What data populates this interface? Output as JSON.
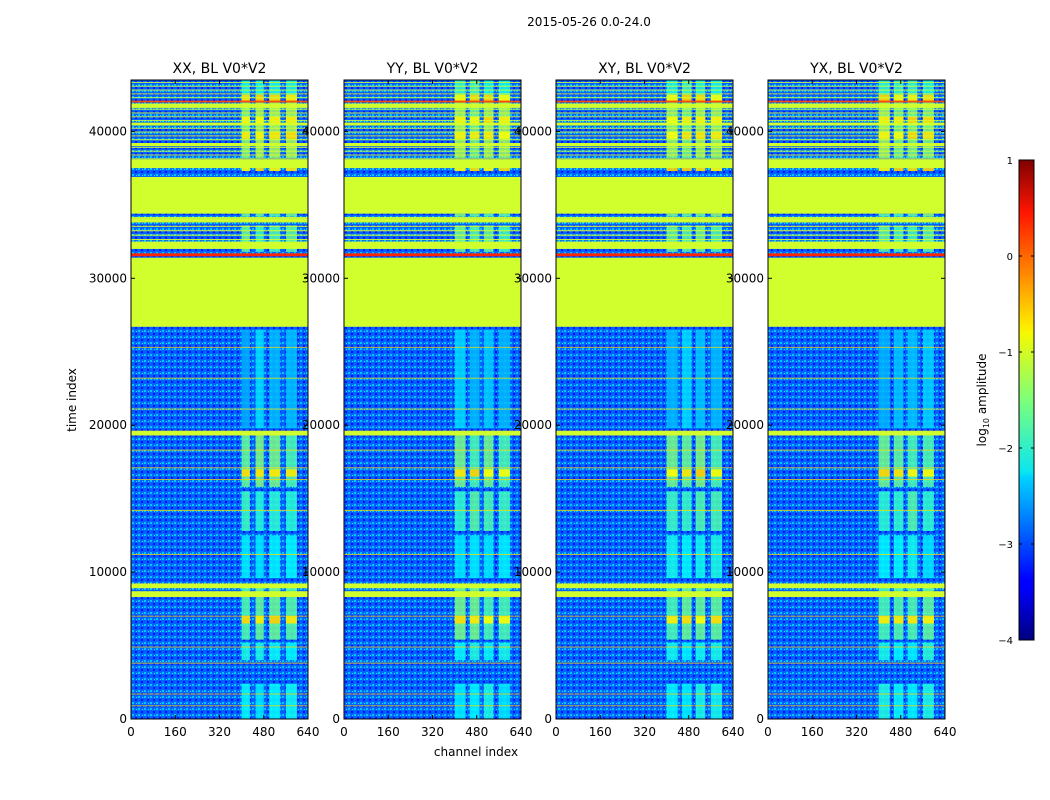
{
  "suptitle": "2015-05-26 0.0-24.0",
  "chart_data": {
    "type": "heatmap",
    "title": "2015-05-26 0.0-24.0",
    "xlabel": "channel index",
    "ylabel": "time index",
    "xlim": [
      0,
      640
    ],
    "ylim": [
      0,
      43500
    ],
    "xticks": [
      0,
      160,
      320,
      480,
      640
    ],
    "yticks": [
      0,
      10000,
      20000,
      30000,
      40000
    ],
    "colorbar": {
      "label_main": "log",
      "label_sub": "10",
      "label_rest": " amplitude",
      "range": [
        -4,
        1
      ],
      "ticks": [
        "1",
        "0",
        "−1",
        "−2",
        "−3",
        "−4"
      ],
      "colormap": "jet"
    },
    "panels": [
      {
        "title": "XX, BL V0*V2",
        "signal": [
          [
            400,
            430
          ],
          [
            450,
            480
          ],
          [
            500,
            540
          ],
          [
            560,
            600
          ]
        ]
      },
      {
        "title": "YY, BL V0*V2",
        "signal": [
          [
            400,
            440
          ],
          [
            455,
            490
          ],
          [
            505,
            540
          ],
          [
            560,
            600
          ]
        ]
      },
      {
        "title": "XY, BL V0*V2",
        "signal": [
          [
            400,
            440
          ],
          [
            455,
            490
          ],
          [
            505,
            540
          ],
          [
            560,
            600
          ]
        ]
      },
      {
        "title": "YX, BL V0*V2",
        "signal": [
          [
            400,
            440
          ],
          [
            455,
            490
          ],
          [
            505,
            540
          ],
          [
            560,
            600
          ]
        ]
      }
    ],
    "flagged_ranges": [
      [
        26700,
        31400
      ],
      [
        32000,
        32500
      ],
      [
        33800,
        34100
      ],
      [
        34400,
        36900
      ],
      [
        37500,
        38100
      ],
      [
        41600,
        41900
      ]
    ],
    "flagged_level": -1.1,
    "hot_rows": [
      [
        31500,
        31700
      ]
    ],
    "hot_level": 0.2,
    "faint_lines": [
      900,
      1700,
      3800,
      4900,
      7000,
      8500,
      9200,
      11200,
      14200,
      16300,
      17100,
      18300,
      19600,
      21100,
      23200,
      25300
    ],
    "gap_rows": [
      [
        8300,
        8700
      ],
      [
        8900,
        9200
      ],
      [
        19300,
        19600
      ],
      [
        39000,
        39200
      ],
      [
        40400,
        40600
      ]
    ]
  }
}
